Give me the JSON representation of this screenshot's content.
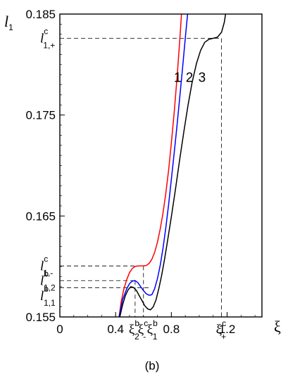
{
  "chart_data": {
    "type": "line",
    "xlabel": "ξ",
    "ylabel_main": "l",
    "ylabel_sub": "1",
    "panel_label": "(b)",
    "xlim": [
      0,
      1.45
    ],
    "ylim": [
      0.155,
      0.185
    ],
    "x_ticks": [
      {
        "value": 0,
        "label": "0"
      },
      {
        "value": 0.4,
        "label": "0.4"
      },
      {
        "value": 0.8,
        "label": "0.8"
      },
      {
        "value": 1.2,
        "label": "1.2"
      }
    ],
    "y_ticks": [
      {
        "value": 0.155,
        "label": "0.155"
      },
      {
        "value": 0.165,
        "label": "0.165"
      },
      {
        "value": 0.175,
        "label": "0.175"
      },
      {
        "value": 0.185,
        "label": "0.185"
      }
    ],
    "series": [
      {
        "name": "1",
        "color": "#ff0000",
        "points": [
          [
            0.425,
            0.155
          ],
          [
            0.44,
            0.1565
          ],
          [
            0.46,
            0.1578
          ],
          [
            0.48,
            0.1587
          ],
          [
            0.5,
            0.1594
          ],
          [
            0.52,
            0.1598
          ],
          [
            0.54,
            0.16
          ],
          [
            0.56,
            0.16005
          ],
          [
            0.58,
            0.16005
          ],
          [
            0.6,
            0.16005
          ],
          [
            0.62,
            0.1601
          ],
          [
            0.64,
            0.1603
          ],
          [
            0.66,
            0.1607
          ],
          [
            0.68,
            0.1614
          ],
          [
            0.7,
            0.1624
          ],
          [
            0.72,
            0.1637
          ],
          [
            0.74,
            0.1653
          ],
          [
            0.76,
            0.1672
          ],
          [
            0.78,
            0.1695
          ],
          [
            0.8,
            0.1722
          ],
          [
            0.82,
            0.1752
          ],
          [
            0.84,
            0.1786
          ],
          [
            0.86,
            0.1823
          ],
          [
            0.875,
            0.1855
          ]
        ]
      },
      {
        "name": "2",
        "color": "#0000ff",
        "points": [
          [
            0.425,
            0.155
          ],
          [
            0.45,
            0.1567
          ],
          [
            0.48,
            0.1578
          ],
          [
            0.5,
            0.1583
          ],
          [
            0.52,
            0.15855
          ],
          [
            0.54,
            0.1586
          ],
          [
            0.56,
            0.1584
          ],
          [
            0.58,
            0.158
          ],
          [
            0.6,
            0.1576
          ],
          [
            0.62,
            0.1573
          ],
          [
            0.64,
            0.15715
          ],
          [
            0.66,
            0.1572
          ],
          [
            0.68,
            0.1578
          ],
          [
            0.7,
            0.1588
          ],
          [
            0.72,
            0.1601
          ],
          [
            0.74,
            0.1618
          ],
          [
            0.76,
            0.1638
          ],
          [
            0.78,
            0.1661
          ],
          [
            0.8,
            0.1686
          ],
          [
            0.82,
            0.1712
          ],
          [
            0.84,
            0.1739
          ],
          [
            0.86,
            0.1767
          ],
          [
            0.88,
            0.1796
          ],
          [
            0.9,
            0.1826
          ],
          [
            0.92,
            0.1855
          ]
        ]
      },
      {
        "name": "3",
        "color": "#000000",
        "points": [
          [
            0.43,
            0.155
          ],
          [
            0.45,
            0.1562
          ],
          [
            0.47,
            0.1571
          ],
          [
            0.49,
            0.1577
          ],
          [
            0.51,
            0.158
          ],
          [
            0.53,
            0.1579
          ],
          [
            0.55,
            0.1576
          ],
          [
            0.57,
            0.1571
          ],
          [
            0.59,
            0.1566
          ],
          [
            0.61,
            0.1561
          ],
          [
            0.63,
            0.1558
          ],
          [
            0.65,
            0.1557
          ],
          [
            0.67,
            0.156
          ],
          [
            0.69,
            0.1567
          ],
          [
            0.71,
            0.1578
          ],
          [
            0.73,
            0.1591
          ],
          [
            0.75,
            0.1606
          ],
          [
            0.77,
            0.1623
          ],
          [
            0.8,
            0.1649
          ],
          [
            0.83,
            0.1677
          ],
          [
            0.86,
            0.1706
          ],
          [
            0.89,
            0.1734
          ],
          [
            0.92,
            0.176
          ],
          [
            0.95,
            0.1783
          ],
          [
            0.98,
            0.1801
          ],
          [
            1.01,
            0.1814
          ],
          [
            1.04,
            0.1822
          ],
          [
            1.07,
            0.1825
          ],
          [
            1.1,
            0.1826
          ],
          [
            1.13,
            0.1827
          ],
          [
            1.16,
            0.1832
          ],
          [
            1.18,
            0.1842
          ],
          [
            1.2,
            0.186
          ]
        ]
      }
    ],
    "curve_labels": [
      {
        "text": "1",
        "x": 0.845,
        "y": 0.1783
      },
      {
        "text": "2",
        "x": 0.93,
        "y": 0.1783
      },
      {
        "text": "3",
        "x": 1.02,
        "y": 0.1783
      }
    ],
    "reference_lines": [
      {
        "y": 0.1826,
        "x_end": 1.16,
        "kind": "both"
      },
      {
        "y": 0.16005,
        "x_end": 0.6,
        "kind": "both"
      },
      {
        "y": 0.1586,
        "x_end": 0.54,
        "kind": "both"
      },
      {
        "y": 0.1579,
        "x_end": 0.65,
        "kind": "h"
      }
    ],
    "y_annotations": [
      {
        "main": "l",
        "sup": "c",
        "sub": "1,+",
        "y": 0.1826
      },
      {
        "main": "l",
        "sup": "c",
        "sub": "1,-",
        "y": 0.16005
      },
      {
        "main": "l",
        "sup": "b",
        "sub": "1,2",
        "y": 0.1586
      },
      {
        "main": "l",
        "sup": "b",
        "sub": "1,1",
        "y": 0.1571
      }
    ],
    "x_annotations": [
      {
        "main": "ξ",
        "sup": "b",
        "sub": "2",
        "x": 0.535
      },
      {
        "main": "ξ",
        "sup": "c",
        "sub": "-",
        "x": 0.6
      },
      {
        "main": "ξ",
        "sup": "b",
        "sub": "1",
        "x": 0.665
      },
      {
        "main": "ξ",
        "sup": "c",
        "sub": "+",
        "x": 1.16
      }
    ]
  }
}
